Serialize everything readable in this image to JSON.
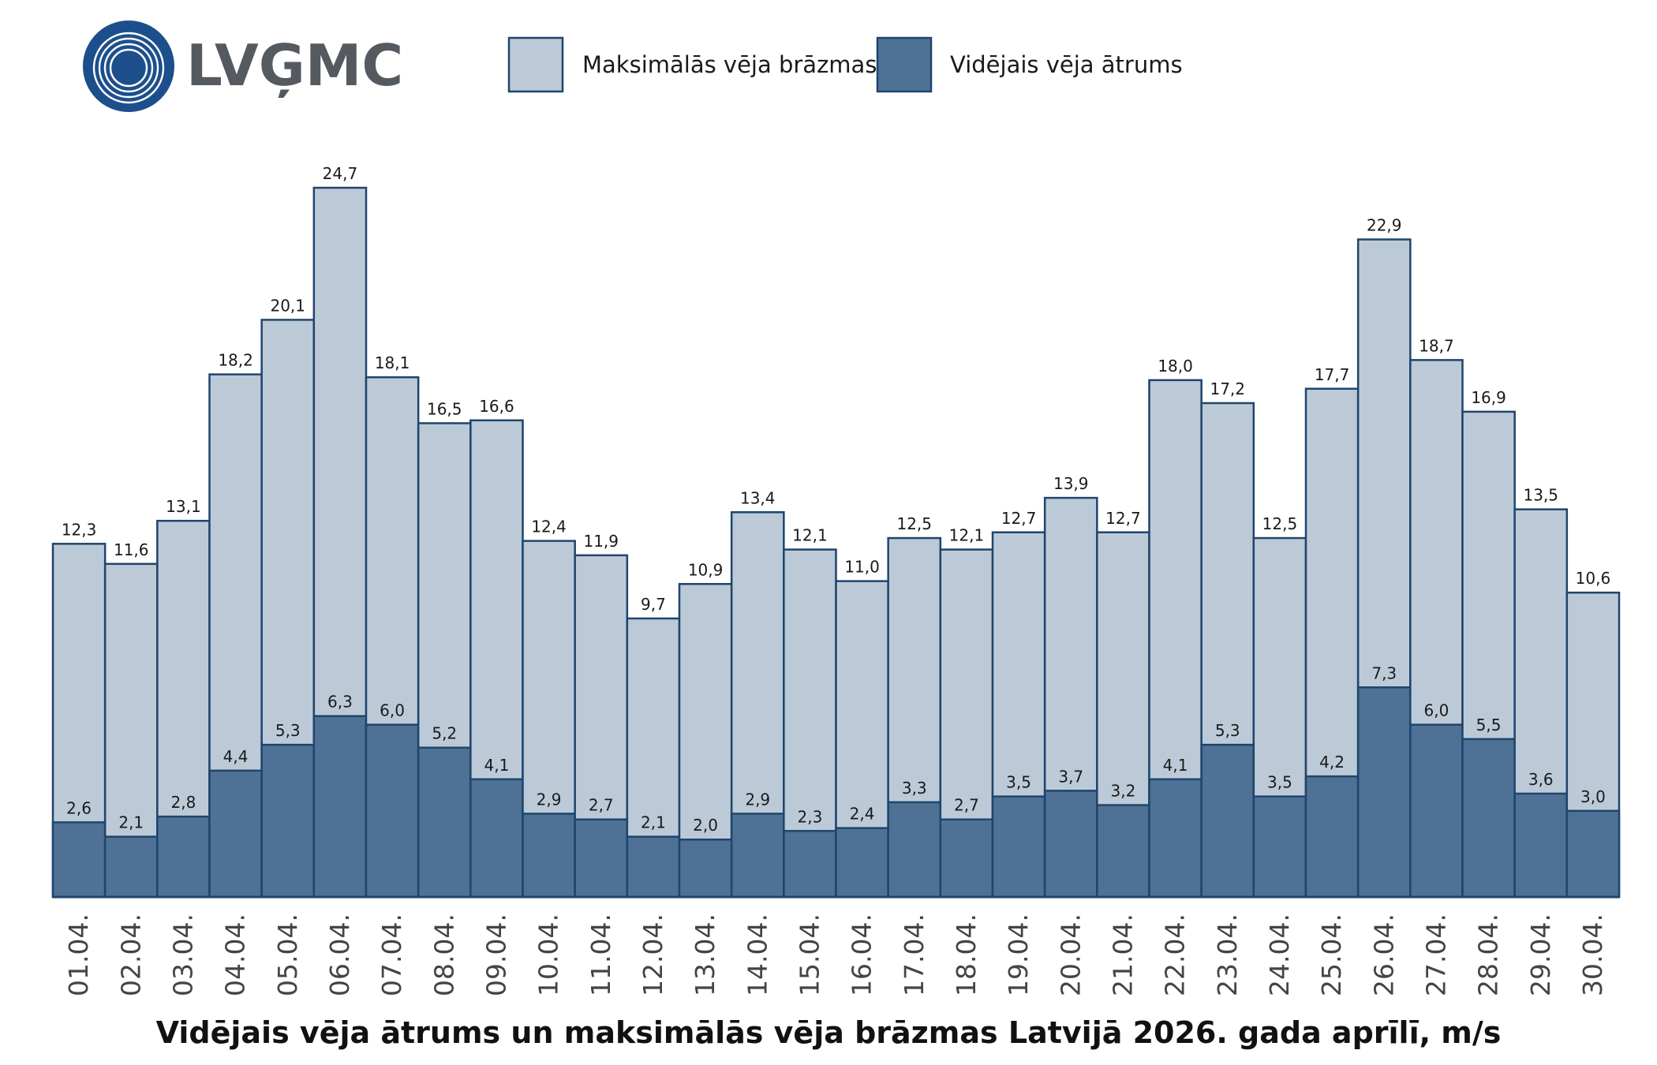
{
  "logo": {
    "text": "LVĢMC"
  },
  "colors": {
    "max_fill": "#bccad8",
    "avg_fill": "#4e7195",
    "outline": "#1f456d",
    "logo_blue": "#1c4f8c",
    "logo_gray": "#555a60"
  },
  "chart_data": {
    "type": "bar",
    "title": "Vidējais vēja ātrums un maksimālās vēja brāzmas Latvijā 2026. gada aprīlī, m/s",
    "xlabel": "",
    "ylabel": "",
    "ylim": [
      0,
      30
    ],
    "grid": false,
    "legend_position": "top",
    "categories": [
      "01.04.",
      "02.04.",
      "03.04.",
      "04.04.",
      "05.04.",
      "06.04.",
      "07.04.",
      "08.04.",
      "09.04.",
      "10.04.",
      "11.04.",
      "12.04.",
      "13.04.",
      "14.04.",
      "15.04.",
      "16.04.",
      "17.04.",
      "18.04.",
      "19.04.",
      "20.04.",
      "21.04.",
      "22.04.",
      "23.04.",
      "24.04.",
      "25.04.",
      "26.04.",
      "27.04.",
      "28.04.",
      "29.04.",
      "30.04."
    ],
    "series": [
      {
        "name": "Maksimālās vēja brāzmas",
        "values": [
          12.3,
          11.6,
          13.1,
          18.2,
          20.1,
          24.7,
          18.1,
          16.5,
          16.6,
          12.4,
          11.9,
          9.7,
          10.9,
          13.4,
          12.1,
          11.0,
          12.5,
          12.1,
          12.7,
          13.9,
          12.7,
          18.0,
          17.2,
          12.5,
          17.7,
          22.9,
          18.7,
          16.9,
          13.5,
          10.6
        ],
        "labels": [
          "12,3",
          "11,6",
          "13,1",
          "18,2",
          "20,1",
          "24,7",
          "18,1",
          "16,5",
          "16,6",
          "12,4",
          "11,9",
          "9,7",
          "10,9",
          "13,4",
          "12,1",
          "11,0",
          "12,5",
          "12,1",
          "12,7",
          "13,9",
          "12,7",
          "18,0",
          "17,2",
          "12,5",
          "17,7",
          "22,9",
          "18,7",
          "16,9",
          "13,5",
          "10,6"
        ]
      },
      {
        "name": "Vidējais vēja ātrums",
        "values": [
          2.6,
          2.1,
          2.8,
          4.4,
          5.3,
          6.3,
          6.0,
          5.2,
          4.1,
          2.9,
          2.7,
          2.1,
          2.0,
          2.9,
          2.3,
          2.4,
          3.3,
          2.7,
          3.5,
          3.7,
          3.2,
          4.1,
          5.3,
          3.5,
          4.2,
          7.3,
          6.0,
          5.5,
          3.6,
          3.0
        ],
        "labels": [
          "2,6",
          "2,1",
          "2,8",
          "4,4",
          "5,3",
          "6,3",
          "6,0",
          "5,2",
          "4,1",
          "2,9",
          "2,7",
          "2,1",
          "2,0",
          "2,9",
          "2,3",
          "2,4",
          "3,3",
          "2,7",
          "3,5",
          "3,7",
          "3,2",
          "4,1",
          "5,3",
          "3,5",
          "4,2",
          "7,3",
          "6,0",
          "5,5",
          "3,6",
          "3,0"
        ]
      }
    ]
  }
}
